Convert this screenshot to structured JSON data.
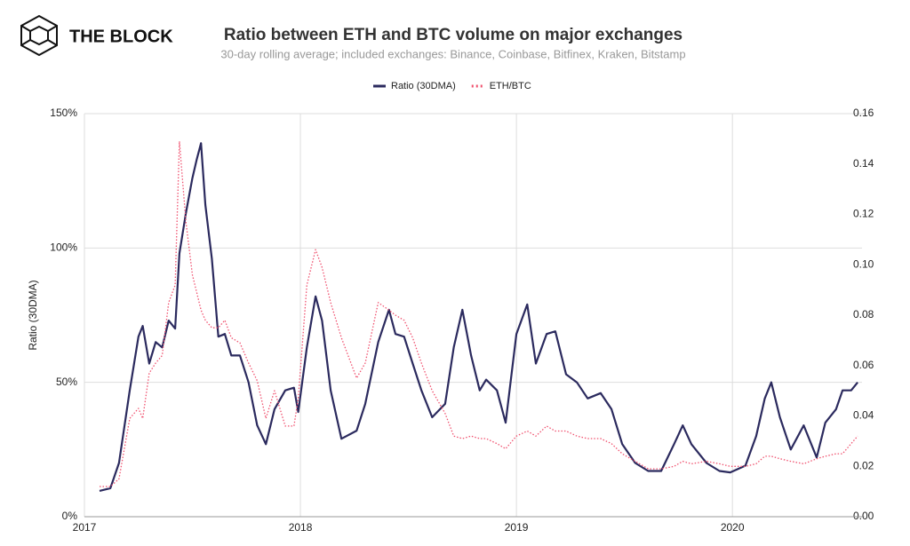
{
  "brand": "THE BLOCK",
  "chart_data": {
    "type": "line",
    "title": "Ratio between ETH and BTC volume on major exchanges",
    "subtitle": "30-day rolling average; included exchanges: Binance, Coinbase, Bitfinex, Kraken, Bitstamp",
    "y_label": "Ratio (30DMA)",
    "legend": "top",
    "grid": true,
    "x": [
      2017.07,
      2017.12,
      2017.16,
      2017.21,
      2017.25,
      2017.27,
      2017.3,
      2017.33,
      2017.36,
      2017.39,
      2017.42,
      2017.44,
      2017.47,
      2017.5,
      2017.52,
      2017.54,
      2017.56,
      2017.59,
      2017.62,
      2017.65,
      2017.68,
      2017.72,
      2017.76,
      2017.8,
      2017.84,
      2017.88,
      2017.93,
      2017.97,
      2017.99,
      2018.03,
      2018.07,
      2018.1,
      2018.14,
      2018.19,
      2018.26,
      2018.3,
      2018.36,
      2018.41,
      2018.44,
      2018.48,
      2018.52,
      2018.56,
      2018.61,
      2018.67,
      2018.71,
      2018.75,
      2018.79,
      2018.83,
      2018.86,
      2018.91,
      2018.95,
      2019.0,
      2019.05,
      2019.09,
      2019.14,
      2019.18,
      2019.23,
      2019.28,
      2019.33,
      2019.39,
      2019.44,
      2019.49,
      2019.55,
      2019.61,
      2019.67,
      2019.73,
      2019.77,
      2019.81,
      2019.88,
      2019.94,
      2019.99,
      2020.06,
      2020.11,
      2020.15,
      2020.18,
      2020.22,
      2020.27,
      2020.33,
      2020.39,
      2020.43,
      2020.48,
      2020.51,
      2020.55,
      2020.58
    ],
    "xlim": [
      2017,
      2020.6
    ],
    "xticks": [
      2017,
      2018,
      2019,
      2020
    ],
    "ylim": [
      0,
      150
    ],
    "yticks": [
      {
        "value": 0,
        "label": "0%"
      },
      {
        "value": 50,
        "label": "50%"
      },
      {
        "value": 100,
        "label": "100%"
      },
      {
        "value": 150,
        "label": "150%"
      }
    ],
    "y2lim": [
      0,
      0.16
    ],
    "y2ticks": [
      {
        "value": 0,
        "label": "0.00"
      },
      0.02,
      0.04,
      0.06,
      0.08,
      {
        "value": 0.1,
        "label": "0.10"
      },
      0.12,
      0.14,
      0.16
    ],
    "series": [
      {
        "name": "Ratio (30DMA)",
        "color": "#2b2a5e",
        "style": "solid",
        "values": [
          9.6,
          10.6,
          20,
          47,
          67,
          71,
          57,
          65,
          63,
          73,
          70,
          98,
          113,
          126,
          133,
          139,
          116,
          96,
          67,
          68,
          60,
          60,
          50,
          34,
          27,
          40,
          47,
          48,
          39,
          63,
          82,
          73,
          47,
          29,
          32,
          42,
          65,
          77,
          68,
          67,
          57,
          47,
          37,
          42,
          63,
          77,
          60,
          47,
          51,
          47,
          35,
          68,
          79,
          57,
          68,
          69,
          53,
          50,
          44,
          46,
          40,
          27,
          20,
          17,
          17,
          27,
          34,
          27,
          20,
          17,
          16.5,
          19,
          30,
          44,
          50,
          37,
          25,
          34,
          22,
          35,
          40,
          47,
          47,
          50
        ]
      },
      {
        "name": "ETH/BTC",
        "color": "#f0506e",
        "style": "dotted",
        "axis": "y2",
        "values": [
          0.012,
          0.012,
          0.015,
          0.039,
          0.043,
          0.039,
          0.057,
          0.061,
          0.064,
          0.085,
          0.092,
          0.149,
          0.117,
          0.096,
          0.089,
          0.082,
          0.078,
          0.075,
          0.075,
          0.078,
          0.071,
          0.069,
          0.061,
          0.054,
          0.039,
          0.05,
          0.036,
          0.036,
          0.047,
          0.092,
          0.106,
          0.099,
          0.085,
          0.071,
          0.055,
          0.061,
          0.085,
          0.082,
          0.08,
          0.078,
          0.071,
          0.061,
          0.05,
          0.041,
          0.032,
          0.031,
          0.032,
          0.031,
          0.031,
          0.029,
          0.027,
          0.032,
          0.034,
          0.032,
          0.036,
          0.034,
          0.034,
          0.032,
          0.031,
          0.031,
          0.029,
          0.025,
          0.022,
          0.019,
          0.019,
          0.02,
          0.022,
          0.021,
          0.022,
          0.021,
          0.02,
          0.02,
          0.021,
          0.024,
          0.024,
          0.023,
          0.022,
          0.021,
          0.023,
          0.024,
          0.025,
          0.025,
          0.029,
          0.032
        ]
      }
    ]
  }
}
